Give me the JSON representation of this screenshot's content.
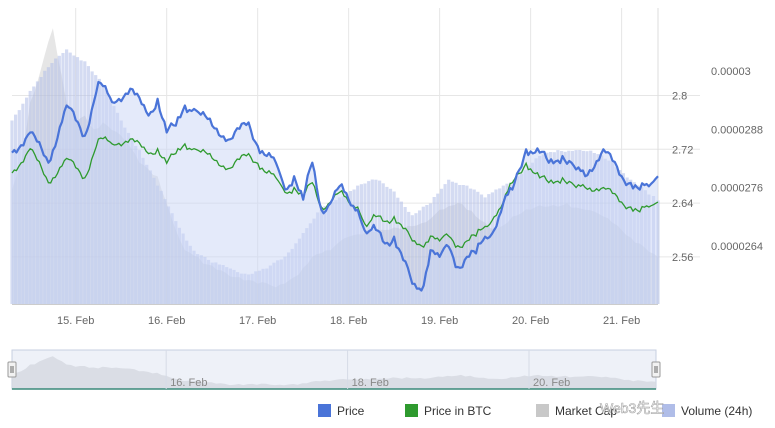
{
  "chart_data": {
    "type": "line",
    "x_unit": "day (Feb)",
    "x_range": [
      14.3,
      21.4
    ],
    "x_ticks": [
      {
        "value": 15,
        "label": "15. Feb"
      },
      {
        "value": 16,
        "label": "16. Feb"
      },
      {
        "value": 17,
        "label": "17. Feb"
      },
      {
        "value": 18,
        "label": "18. Feb"
      },
      {
        "value": 19,
        "label": "19. Feb"
      },
      {
        "value": 20,
        "label": "20. Feb"
      },
      {
        "value": 21,
        "label": "21. Feb"
      }
    ],
    "y_axis_price": {
      "range": [
        2.49,
        2.93
      ],
      "ticks": [
        {
          "value": 2.8,
          "label": "2.8"
        },
        {
          "value": 2.72,
          "label": "2.72"
        },
        {
          "value": 2.64,
          "label": "2.64"
        },
        {
          "value": 2.56,
          "label": "2.56"
        }
      ]
    },
    "y_axis_btc": {
      "range": [
        2.52e-05,
        3.13e-05
      ],
      "ticks": [
        {
          "value": 3e-05,
          "label": "0.00003"
        },
        {
          "value": 2.88e-05,
          "label": "0.0000288"
        },
        {
          "value": 2.76e-05,
          "label": "0.0000276"
        },
        {
          "value": 2.64e-05,
          "label": "0.0000264"
        }
      ]
    },
    "grid": true,
    "legend_position": "bottom-right",
    "series": [
      {
        "name": "Price",
        "color": "#4a74d8",
        "axis": "price",
        "points": [
          [
            14.3,
            2.715
          ],
          [
            14.5,
            2.745
          ],
          [
            14.7,
            2.7
          ],
          [
            14.9,
            2.785
          ],
          [
            15.1,
            2.74
          ],
          [
            15.25,
            2.82
          ],
          [
            15.4,
            2.79
          ],
          [
            15.6,
            2.81
          ],
          [
            15.8,
            2.77
          ],
          [
            15.9,
            2.795
          ],
          [
            16.0,
            2.745
          ],
          [
            16.1,
            2.755
          ],
          [
            16.2,
            2.785
          ],
          [
            16.3,
            2.78
          ],
          [
            16.5,
            2.755
          ],
          [
            16.7,
            2.735
          ],
          [
            16.9,
            2.76
          ],
          [
            17.0,
            2.725
          ],
          [
            17.1,
            2.71
          ],
          [
            17.2,
            2.7
          ],
          [
            17.3,
            2.66
          ],
          [
            17.4,
            2.68
          ],
          [
            17.5,
            2.645
          ],
          [
            17.6,
            2.7
          ],
          [
            17.7,
            2.63
          ],
          [
            17.8,
            2.64
          ],
          [
            17.9,
            2.665
          ],
          [
            18.0,
            2.645
          ],
          [
            18.1,
            2.63
          ],
          [
            18.2,
            2.595
          ],
          [
            18.3,
            2.6
          ],
          [
            18.4,
            2.58
          ],
          [
            18.5,
            2.59
          ],
          [
            18.7,
            2.52
          ],
          [
            18.8,
            2.51
          ],
          [
            18.9,
            2.57
          ],
          [
            19.0,
            2.56
          ],
          [
            19.1,
            2.575
          ],
          [
            19.2,
            2.545
          ],
          [
            19.3,
            2.56
          ],
          [
            19.4,
            2.565
          ],
          [
            19.5,
            2.59
          ],
          [
            19.6,
            2.6
          ],
          [
            19.7,
            2.64
          ],
          [
            19.8,
            2.66
          ],
          [
            19.95,
            2.72
          ],
          [
            20.1,
            2.715
          ],
          [
            20.2,
            2.7
          ],
          [
            20.35,
            2.71
          ],
          [
            20.5,
            2.69
          ],
          [
            20.6,
            2.68
          ],
          [
            20.8,
            2.72
          ],
          [
            21.0,
            2.68
          ],
          [
            21.1,
            2.67
          ],
          [
            21.2,
            2.66
          ],
          [
            21.3,
            2.665
          ],
          [
            21.4,
            2.68
          ]
        ]
      },
      {
        "name": "Price in BTC",
        "color": "#2e9a2e",
        "axis": "btc",
        "points": [
          [
            14.3,
            2.79e-05
          ],
          [
            14.5,
            2.84e-05
          ],
          [
            14.7,
            2.77e-05
          ],
          [
            14.9,
            2.82e-05
          ],
          [
            15.1,
            2.78e-05
          ],
          [
            15.25,
            2.86e-05
          ],
          [
            15.4,
            2.85e-05
          ],
          [
            15.6,
            2.86e-05
          ],
          [
            15.8,
            2.83e-05
          ],
          [
            15.9,
            2.84e-05
          ],
          [
            16.0,
            2.81e-05
          ],
          [
            16.1,
            2.83e-05
          ],
          [
            16.2,
            2.85e-05
          ],
          [
            16.3,
            2.84e-05
          ],
          [
            16.5,
            2.82e-05
          ],
          [
            16.7,
            2.8e-05
          ],
          [
            16.9,
            2.83e-05
          ],
          [
            17.0,
            2.81e-05
          ],
          [
            17.1,
            2.79e-05
          ],
          [
            17.2,
            2.78e-05
          ],
          [
            17.3,
            2.75e-05
          ],
          [
            17.4,
            2.76e-05
          ],
          [
            17.5,
            2.74e-05
          ],
          [
            17.6,
            2.77e-05
          ],
          [
            17.7,
            2.72e-05
          ],
          [
            17.8,
            2.73e-05
          ],
          [
            17.9,
            2.75e-05
          ],
          [
            18.0,
            2.73e-05
          ],
          [
            18.1,
            2.72e-05
          ],
          [
            18.2,
            2.68e-05
          ],
          [
            18.3,
            2.7e-05
          ],
          [
            18.4,
            2.69e-05
          ],
          [
            18.5,
            2.7e-05
          ],
          [
            18.7,
            2.65e-05
          ],
          [
            18.8,
            2.64e-05
          ],
          [
            18.9,
            2.66e-05
          ],
          [
            19.0,
            2.65e-05
          ],
          [
            19.1,
            2.66e-05
          ],
          [
            19.2,
            2.64e-05
          ],
          [
            19.3,
            2.65e-05
          ],
          [
            19.4,
            2.66e-05
          ],
          [
            19.5,
            2.68e-05
          ],
          [
            19.6,
            2.7e-05
          ],
          [
            19.7,
            2.73e-05
          ],
          [
            19.8,
            2.77e-05
          ],
          [
            19.95,
            2.81e-05
          ],
          [
            20.1,
            2.78e-05
          ],
          [
            20.2,
            2.77e-05
          ],
          [
            20.35,
            2.78e-05
          ],
          [
            20.5,
            2.76e-05
          ],
          [
            20.6,
            2.76e-05
          ],
          [
            20.8,
            2.76e-05
          ],
          [
            21.0,
            2.73e-05
          ],
          [
            21.1,
            2.72e-05
          ],
          [
            21.2,
            2.71e-05
          ],
          [
            21.3,
            2.72e-05
          ],
          [
            21.4,
            2.73e-05
          ]
        ]
      },
      {
        "name": "Market Cap",
        "color": "#c8c8c8",
        "axis": "price",
        "points": [
          [
            14.3,
            2.66
          ],
          [
            14.4,
            2.7
          ],
          [
            14.5,
            2.79
          ],
          [
            14.6,
            2.83
          ],
          [
            14.7,
            2.88
          ],
          [
            14.75,
            2.9
          ],
          [
            14.8,
            2.86
          ],
          [
            14.9,
            2.79
          ],
          [
            15.0,
            2.76
          ],
          [
            15.1,
            2.77
          ],
          [
            15.2,
            2.75
          ],
          [
            15.3,
            2.76
          ],
          [
            15.5,
            2.74
          ],
          [
            15.7,
            2.7
          ],
          [
            15.9,
            2.68
          ],
          [
            16.0,
            2.64
          ],
          [
            16.1,
            2.6
          ],
          [
            16.2,
            2.57
          ],
          [
            16.4,
            2.55
          ],
          [
            16.6,
            2.54
          ],
          [
            16.8,
            2.53
          ],
          [
            17.0,
            2.52
          ],
          [
            17.2,
            2.515
          ],
          [
            17.4,
            2.53
          ],
          [
            17.6,
            2.56
          ],
          [
            17.8,
            2.57
          ],
          [
            18.0,
            2.59
          ],
          [
            18.2,
            2.6
          ],
          [
            18.4,
            2.6
          ],
          [
            18.6,
            2.6
          ],
          [
            18.8,
            2.61
          ],
          [
            19.0,
            2.63
          ],
          [
            19.2,
            2.64
          ],
          [
            19.3,
            2.63
          ],
          [
            19.4,
            2.62
          ],
          [
            19.6,
            2.6
          ],
          [
            19.8,
            2.62
          ],
          [
            20.0,
            2.63
          ],
          [
            20.2,
            2.635
          ],
          [
            20.4,
            2.64
          ],
          [
            20.6,
            2.63
          ],
          [
            20.8,
            2.62
          ],
          [
            21.0,
            2.6
          ],
          [
            21.2,
            2.58
          ],
          [
            21.4,
            2.56
          ]
        ]
      },
      {
        "name": "Volume (24h)",
        "color": "#b0bde8",
        "axis": "volume",
        "points": [
          [
            14.3,
            0.62
          ],
          [
            14.5,
            0.72
          ],
          [
            14.7,
            0.8
          ],
          [
            14.9,
            0.86
          ],
          [
            15.1,
            0.82
          ],
          [
            15.3,
            0.74
          ],
          [
            15.5,
            0.62
          ],
          [
            15.7,
            0.52
          ],
          [
            15.9,
            0.4
          ],
          [
            16.1,
            0.28
          ],
          [
            16.3,
            0.18
          ],
          [
            16.5,
            0.14
          ],
          [
            16.7,
            0.12
          ],
          [
            16.9,
            0.1
          ],
          [
            17.1,
            0.12
          ],
          [
            17.3,
            0.16
          ],
          [
            17.5,
            0.24
          ],
          [
            17.7,
            0.32
          ],
          [
            17.9,
            0.36
          ],
          [
            18.1,
            0.4
          ],
          [
            18.3,
            0.42
          ],
          [
            18.5,
            0.38
          ],
          [
            18.7,
            0.3
          ],
          [
            18.9,
            0.34
          ],
          [
            19.1,
            0.42
          ],
          [
            19.3,
            0.4
          ],
          [
            19.5,
            0.36
          ],
          [
            19.7,
            0.4
          ],
          [
            19.9,
            0.44
          ],
          [
            20.1,
            0.5
          ],
          [
            20.3,
            0.52
          ],
          [
            20.5,
            0.52
          ],
          [
            20.7,
            0.51
          ],
          [
            20.9,
            0.48
          ],
          [
            21.1,
            0.42
          ],
          [
            21.3,
            0.37
          ],
          [
            21.4,
            0.35
          ]
        ]
      }
    ],
    "navigator": {
      "x_ticks": [
        {
          "value": 16,
          "label": "16. Feb"
        },
        {
          "value": 18,
          "label": "18. Feb"
        },
        {
          "value": 20,
          "label": "20. Feb"
        }
      ]
    }
  },
  "legend": {
    "items": [
      {
        "label": "Price",
        "color": "#4a74d8"
      },
      {
        "label": "Price in BTC",
        "color": "#2e9a2e"
      },
      {
        "label": "Market Cap",
        "color": "#c8c8c8"
      },
      {
        "label": "Volume (24h)",
        "color": "#b0bde8"
      }
    ]
  },
  "watermark": "Web3先生"
}
